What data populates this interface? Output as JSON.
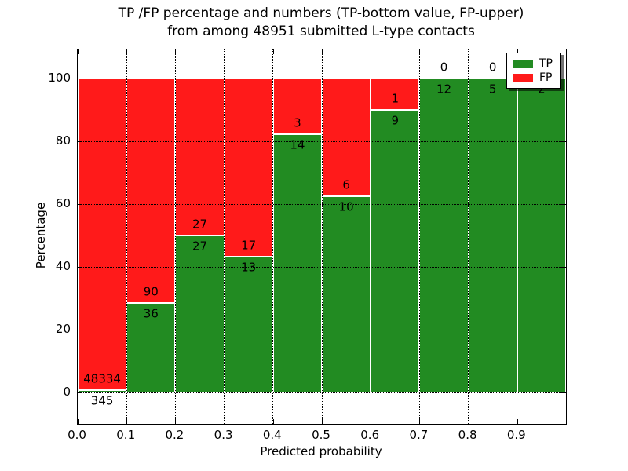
{
  "chart_data": {
    "type": "bar",
    "stacked": true,
    "orientation": "vertical",
    "title_lines": [
      "TP /FP percentage and numbers (TP-bottom value, FP-upper)",
      "from among 48951 submitted L-type contacts"
    ],
    "xlabel": "Predicted probability",
    "ylabel": "Percentage",
    "total_contacts": 48951,
    "bin_edges": [
      0.0,
      0.1,
      0.2,
      0.3,
      0.4,
      0.5,
      0.6,
      0.7,
      0.8,
      0.9,
      1.0
    ],
    "series": [
      {
        "name": "TP",
        "color": "#228b22",
        "counts": [
          345,
          36,
          27,
          13,
          14,
          10,
          9,
          12,
          5,
          2
        ]
      },
      {
        "name": "FP",
        "color": "#ff1a1a",
        "counts": [
          48334,
          90,
          27,
          17,
          3,
          6,
          1,
          0,
          0,
          0
        ]
      }
    ],
    "tp_percent_by_bin": [
      0.71,
      28.57,
      50.0,
      43.33,
      82.35,
      62.5,
      90.0,
      100.0,
      100.0,
      100.0
    ],
    "xtick_values": [
      0.0,
      0.1,
      0.2,
      0.3,
      0.4,
      0.5,
      0.6,
      0.7,
      0.8,
      0.9
    ],
    "xtick_labels": [
      "0.0",
      "0.1",
      "0.2",
      "0.3",
      "0.4",
      "0.5",
      "0.6",
      "0.7",
      "0.8",
      "0.9"
    ],
    "ytick_values": [
      0,
      20,
      40,
      60,
      80,
      100
    ],
    "ytick_labels": [
      "0",
      "20",
      "40",
      "60",
      "80",
      "100"
    ],
    "xlim": [
      0.0,
      1.0
    ],
    "ylim": [
      -10,
      109.3
    ],
    "grid": {
      "visible": true,
      "style": "dotted",
      "color": "#000000"
    },
    "bar_edge_color": "#ffffff",
    "label_color": "#000000",
    "legend": {
      "position": "upper right",
      "entries": [
        {
          "label": "TP",
          "color": "#228b22"
        },
        {
          "label": "FP",
          "color": "#ff1a1a"
        }
      ]
    }
  }
}
